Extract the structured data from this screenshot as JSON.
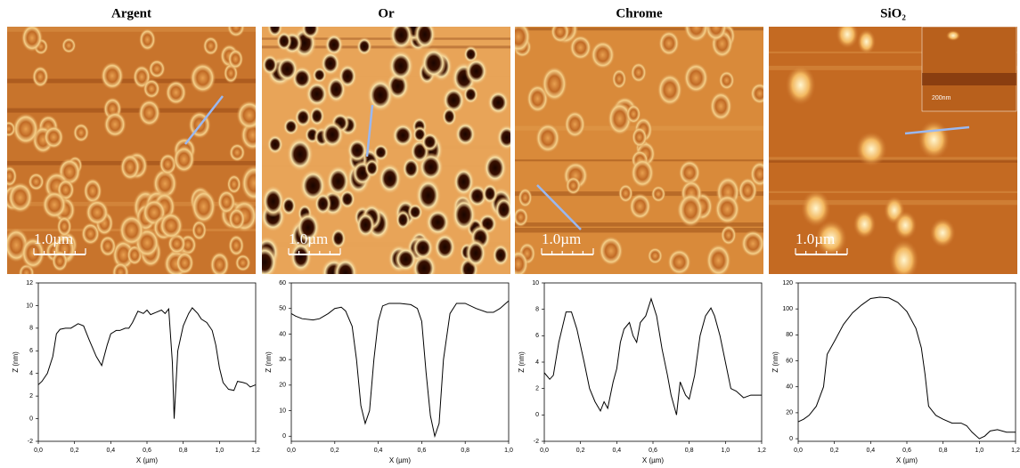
{
  "chart_data": [
    {
      "type": "line",
      "title": "Argent",
      "xlabel": "X (µm)",
      "ylabel": "Z (nm)",
      "color": "#000000",
      "x": [
        0,
        0.02,
        0.05,
        0.08,
        0.1,
        0.12,
        0.15,
        0.18,
        0.2,
        0.22,
        0.25,
        0.28,
        0.32,
        0.35,
        0.38,
        0.4,
        0.43,
        0.45,
        0.48,
        0.5,
        0.52,
        0.55,
        0.58,
        0.6,
        0.62,
        0.65,
        0.68,
        0.7,
        0.72,
        0.74,
        0.75,
        0.77,
        0.8,
        0.83,
        0.85,
        0.88,
        0.9,
        0.93,
        0.96,
        0.98,
        1.0,
        1.02,
        1.05,
        1.08,
        1.1,
        1.13,
        1.15,
        1.17,
        1.2
      ],
      "values": [
        3.0,
        3.3,
        4,
        5.5,
        7.5,
        7.9,
        8,
        8,
        8.2,
        8.4,
        8.2,
        7,
        5.5,
        4.7,
        6.5,
        7.5,
        7.8,
        7.8,
        8,
        8,
        8.5,
        9.5,
        9.3,
        9.6,
        9.2,
        9.4,
        9.6,
        9.3,
        9.7,
        5,
        0,
        6,
        8.2,
        9.3,
        9.8,
        9.3,
        8.8,
        8.5,
        7.8,
        6.5,
        4.5,
        3.2,
        2.6,
        2.5,
        3.3,
        3.2,
        3.1,
        2.8,
        3.0
      ],
      "xlim": [
        0,
        1.2
      ],
      "ylim": [
        -2,
        12
      ],
      "xticks": [
        {
          "value": 0,
          "label": "0,0"
        },
        {
          "value": 0.2,
          "label": "0,2"
        },
        {
          "value": 0.4,
          "label": "0,4"
        },
        {
          "value": 0.6,
          "label": "0,6"
        },
        {
          "value": 0.8,
          "label": "0,8"
        },
        {
          "value": 1.0,
          "label": "1,0"
        },
        {
          "value": 1.2,
          "label": "1,2"
        }
      ],
      "yticks": [
        -2,
        0,
        2,
        4,
        6,
        8,
        10,
        12
      ]
    },
    {
      "type": "line",
      "title": "Or",
      "xlabel": "X (µm)",
      "ylabel": "Z (nm)",
      "color": "#000000",
      "x": [
        0,
        0.02,
        0.05,
        0.1,
        0.13,
        0.17,
        0.2,
        0.23,
        0.25,
        0.28,
        0.3,
        0.32,
        0.34,
        0.36,
        0.38,
        0.4,
        0.42,
        0.45,
        0.5,
        0.55,
        0.58,
        0.6,
        0.62,
        0.64,
        0.66,
        0.68,
        0.7,
        0.73,
        0.76,
        0.8,
        0.85,
        0.9,
        0.93,
        0.96,
        1.0
      ],
      "values": [
        48,
        47,
        46,
        45.5,
        46,
        48,
        50,
        50.5,
        49,
        43,
        30,
        12,
        5,
        10,
        30,
        45,
        51,
        52,
        52,
        51.5,
        50,
        45,
        25,
        8,
        0,
        5,
        30,
        48,
        52,
        52,
        50,
        48.5,
        48.5,
        50,
        53
      ],
      "xlim": [
        0,
        1.0
      ],
      "ylim": [
        -2,
        60
      ],
      "xticks": [
        {
          "value": 0,
          "label": "0,0"
        },
        {
          "value": 0.2,
          "label": "0,2"
        },
        {
          "value": 0.4,
          "label": "0,4"
        },
        {
          "value": 0.6,
          "label": "0,6"
        },
        {
          "value": 0.8,
          "label": "0,8"
        },
        {
          "value": 1.0,
          "label": "1,0"
        }
      ],
      "yticks": [
        0,
        10,
        20,
        30,
        40,
        50,
        60
      ]
    },
    {
      "type": "line",
      "title": "Chrome",
      "xlabel": "X (µm)",
      "ylabel": "Z (nm)",
      "color": "#000000",
      "x": [
        0,
        0.03,
        0.05,
        0.08,
        0.12,
        0.15,
        0.18,
        0.22,
        0.25,
        0.28,
        0.31,
        0.33,
        0.35,
        0.38,
        0.4,
        0.42,
        0.44,
        0.47,
        0.49,
        0.51,
        0.53,
        0.56,
        0.59,
        0.62,
        0.65,
        0.68,
        0.7,
        0.73,
        0.75,
        0.78,
        0.8,
        0.83,
        0.86,
        0.89,
        0.92,
        0.94,
        0.97,
        1.0,
        1.03,
        1.06,
        1.1,
        1.14,
        1.2
      ],
      "values": [
        3.2,
        2.7,
        3,
        5.5,
        7.8,
        7.8,
        6.5,
        4,
        2,
        1,
        0.3,
        1,
        0.5,
        2.5,
        3.5,
        5.5,
        6.5,
        7,
        6,
        5.5,
        7,
        7.5,
        8.8,
        7.5,
        5,
        3,
        1.5,
        0,
        2.5,
        1.5,
        1.2,
        3,
        6,
        7.5,
        8.1,
        7.5,
        6,
        4,
        2,
        1.8,
        1.3,
        1.5,
        1.5
      ],
      "xlim": [
        0,
        1.2
      ],
      "ylim": [
        -2,
        10
      ],
      "xticks": [
        {
          "value": 0,
          "label": "0,0"
        },
        {
          "value": 0.2,
          "label": "0,2"
        },
        {
          "value": 0.4,
          "label": "0,4"
        },
        {
          "value": 0.6,
          "label": "0,6"
        },
        {
          "value": 0.8,
          "label": "0,8"
        },
        {
          "value": 1.0,
          "label": "1,0"
        },
        {
          "value": 1.2,
          "label": "1,2"
        }
      ],
      "yticks": [
        -2,
        0,
        2,
        4,
        6,
        8,
        10
      ]
    },
    {
      "type": "line",
      "title": "SiO₂",
      "xlabel": "X (µm)",
      "ylabel": "Z (nm)",
      "color": "#000000",
      "x": [
        0,
        0.03,
        0.06,
        0.1,
        0.14,
        0.16,
        0.2,
        0.25,
        0.3,
        0.35,
        0.4,
        0.45,
        0.5,
        0.55,
        0.6,
        0.65,
        0.68,
        0.7,
        0.72,
        0.76,
        0.8,
        0.85,
        0.9,
        0.93,
        0.96,
        1.0,
        1.03,
        1.06,
        1.1,
        1.15,
        1.2
      ],
      "values": [
        13,
        15,
        18,
        25,
        40,
        65,
        75,
        88,
        97,
        103,
        108,
        109,
        108.5,
        105,
        98,
        85,
        70,
        50,
        25,
        18,
        15,
        12,
        12,
        10,
        5,
        0,
        2,
        6,
        7,
        5,
        5
      ],
      "xlim": [
        0,
        1.2
      ],
      "ylim": [
        -2,
        120
      ],
      "xticks": [
        {
          "value": 0,
          "label": "0,0"
        },
        {
          "value": 0.2,
          "label": "0,2"
        },
        {
          "value": 0.4,
          "label": "0,4"
        },
        {
          "value": 0.6,
          "label": "0,6"
        },
        {
          "value": 0.8,
          "label": "0,8"
        },
        {
          "value": 1.0,
          "label": "1,0"
        },
        {
          "value": 1.2,
          "label": "1,2"
        }
      ],
      "yticks": [
        0,
        20,
        40,
        60,
        80,
        100,
        120
      ]
    }
  ],
  "images": {
    "panels": [
      {
        "scale_bar": "1.0µm"
      },
      {
        "scale_bar": "1.0µm"
      },
      {
        "scale_bar": "1.0µm"
      },
      {
        "scale_bar": "1.0µm",
        "inset_scale_bar": "200nm"
      }
    ]
  }
}
